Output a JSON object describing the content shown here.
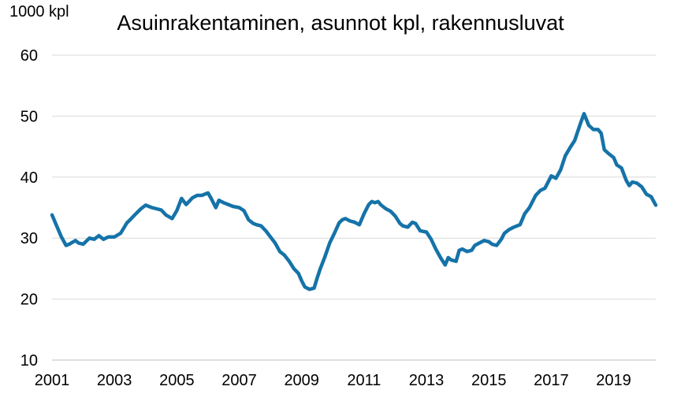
{
  "chart_data": {
    "type": "line",
    "title": "Asuinrakentaminen, asunnot kpl, rakennusluvat",
    "ylabel": "1000 kpl",
    "xlabel": "",
    "ylim": [
      10,
      60
    ],
    "xlim": [
      2001.0,
      2020.35
    ],
    "y_ticks": [
      "10",
      "20",
      "30",
      "40",
      "50",
      "60"
    ],
    "x_ticks": [
      "2001",
      "2003",
      "2005",
      "2007",
      "2009",
      "2011",
      "2013",
      "2015",
      "2017",
      "2019"
    ],
    "grid": true,
    "colors": {
      "line": "#1573a8",
      "grid": "#d9d9d9"
    },
    "series": [
      {
        "name": "",
        "x": [
          2001.0,
          2001.15,
          2001.3,
          2001.45,
          2001.55,
          2001.75,
          2001.85,
          2002.0,
          2002.2,
          2002.35,
          2002.5,
          2002.65,
          2002.8,
          2003.0,
          2003.2,
          2003.4,
          2003.5,
          2003.65,
          2003.85,
          2004.0,
          2004.2,
          2004.35,
          2004.5,
          2004.65,
          2004.85,
          2005.0,
          2005.15,
          2005.3,
          2005.5,
          2005.65,
          2005.8,
          2006.0,
          2006.1,
          2006.25,
          2006.35,
          2006.5,
          2006.65,
          2006.8,
          2007.0,
          2007.15,
          2007.3,
          2007.45,
          2007.55,
          2007.7,
          2007.85,
          2008.0,
          2008.15,
          2008.3,
          2008.45,
          2008.6,
          2008.75,
          2008.9,
          2009.0,
          2009.1,
          2009.25,
          2009.4,
          2009.5,
          2009.6,
          2009.75,
          2009.9,
          2010.05,
          2010.2,
          2010.3,
          2010.4,
          2010.55,
          2010.7,
          2010.85,
          2011.0,
          2011.15,
          2011.25,
          2011.35,
          2011.45,
          2011.55,
          2011.7,
          2011.85,
          2012.0,
          2012.15,
          2012.25,
          2012.4,
          2012.55,
          2012.65,
          2012.8,
          2013.0,
          2013.15,
          2013.3,
          2013.45,
          2013.6,
          2013.7,
          2013.8,
          2013.95,
          2014.05,
          2014.15,
          2014.3,
          2014.45,
          2014.55,
          2014.7,
          2014.85,
          2015.0,
          2015.1,
          2015.25,
          2015.4,
          2015.5,
          2015.65,
          2015.8,
          2016.0,
          2016.15,
          2016.3,
          2016.5,
          2016.65,
          2016.8,
          2017.0,
          2017.15,
          2017.3,
          2017.45,
          2017.6,
          2017.75,
          2017.85,
          2017.95,
          2018.05,
          2018.2,
          2018.35,
          2018.5,
          2018.6,
          2018.7,
          2018.85,
          2019.0,
          2019.1,
          2019.25,
          2019.4,
          2019.5,
          2019.6,
          2019.75,
          2019.9,
          2020.05,
          2020.2,
          2020.35
        ],
        "values": [
          33.8,
          32.0,
          30.2,
          28.8,
          29.0,
          29.6,
          29.2,
          29.0,
          30.0,
          29.8,
          30.4,
          29.8,
          30.2,
          30.2,
          30.8,
          32.5,
          33.0,
          33.8,
          34.8,
          35.4,
          35.0,
          34.8,
          34.6,
          33.8,
          33.2,
          34.5,
          36.5,
          35.5,
          36.6,
          37.0,
          37.0,
          37.4,
          36.5,
          35.0,
          36.2,
          35.8,
          35.5,
          35.2,
          35.0,
          34.5,
          33.0,
          32.4,
          32.2,
          32.0,
          31.2,
          30.2,
          29.2,
          27.8,
          27.2,
          26.2,
          25.0,
          24.2,
          23.0,
          22.0,
          21.6,
          21.8,
          23.5,
          25.0,
          27.0,
          29.2,
          30.8,
          32.5,
          33.0,
          33.2,
          32.8,
          32.6,
          32.2,
          34.0,
          35.5,
          36.0,
          35.8,
          36.0,
          35.4,
          34.8,
          34.4,
          33.6,
          32.4,
          32.0,
          31.8,
          32.6,
          32.4,
          31.2,
          31.0,
          29.8,
          28.2,
          26.8,
          25.6,
          26.8,
          26.4,
          26.2,
          28.0,
          28.2,
          27.8,
          28.0,
          28.8,
          29.2,
          29.6,
          29.4,
          29.0,
          28.8,
          29.8,
          30.8,
          31.4,
          31.8,
          32.2,
          34.0,
          35.0,
          37.0,
          37.8,
          38.2,
          40.2,
          39.8,
          41.2,
          43.5,
          44.8,
          46.0,
          47.5,
          49.0,
          50.4,
          48.5,
          47.8,
          47.8,
          47.2,
          44.5,
          43.8,
          43.2,
          42.0,
          41.5,
          39.5,
          38.6,
          39.2,
          39.0,
          38.4,
          37.2,
          36.8,
          35.4
        ]
      }
    ]
  }
}
